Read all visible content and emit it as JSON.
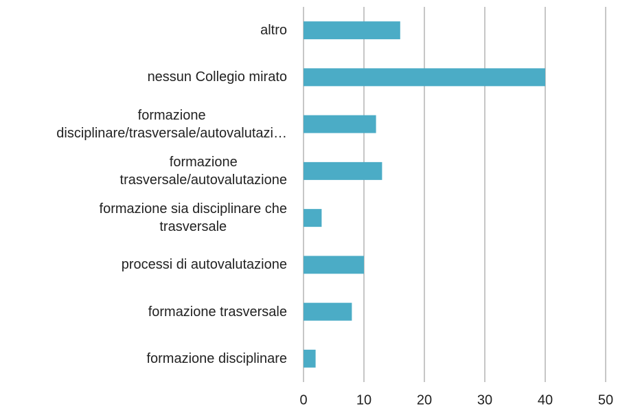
{
  "chart_data": {
    "type": "bar",
    "orientation": "horizontal",
    "categories": [
      "altro",
      "nessun Collegio mirato",
      "formazione\ndisciplinare/trasversale/autovalutazi…",
      "formazione\ntrasversale/autovalutazione",
      "formazione sia disciplinare che\ntrasversale",
      "processi di autovalutazione",
      "formazione trasversale",
      "formazione disciplinare"
    ],
    "values": [
      16,
      40,
      12,
      13,
      3,
      10,
      8,
      2
    ],
    "color": "#4bacc6",
    "xlim": [
      0,
      50
    ],
    "xticks": [
      0,
      10,
      20,
      30,
      40,
      50
    ],
    "grid": true
  }
}
